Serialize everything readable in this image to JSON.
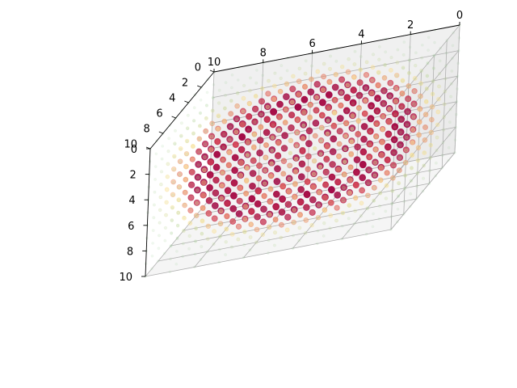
{
  "chart_data": {
    "type": "scatter3d",
    "title": "",
    "xlabel": "",
    "ylabel": "",
    "zlabel": "",
    "xlim": [
      0,
      10
    ],
    "ylim": [
      0,
      10
    ],
    "zlim": [
      0,
      10
    ],
    "grid": true,
    "legend": "none",
    "colormap": "Spectral_r",
    "grid_spacing": 1,
    "value_description": "point color and opacity scale with value; highest values (dark red) form a hollow spherical shell, lowest values (pale green) fill the corners",
    "shell_center": [
      5,
      5,
      5
    ],
    "shell_radius": 4,
    "x_ticks": [
      "0",
      "2",
      "4",
      "6",
      "8",
      "10"
    ],
    "y_ticks": [
      "0",
      "2",
      "4",
      "6",
      "8",
      "10"
    ],
    "z_ticks": [
      "0",
      "2",
      "4",
      "6",
      "8",
      "10"
    ]
  },
  "colors": {
    "pane_left": "#ebebeb",
    "pane_back": "#f0f0f0",
    "pane_floor": "#f5f5f5",
    "grid": "#b0b0b0",
    "low": "#9bd0a0",
    "mid": "#fee08b",
    "high": "#d53e4f",
    "peak": "#9e0142"
  }
}
